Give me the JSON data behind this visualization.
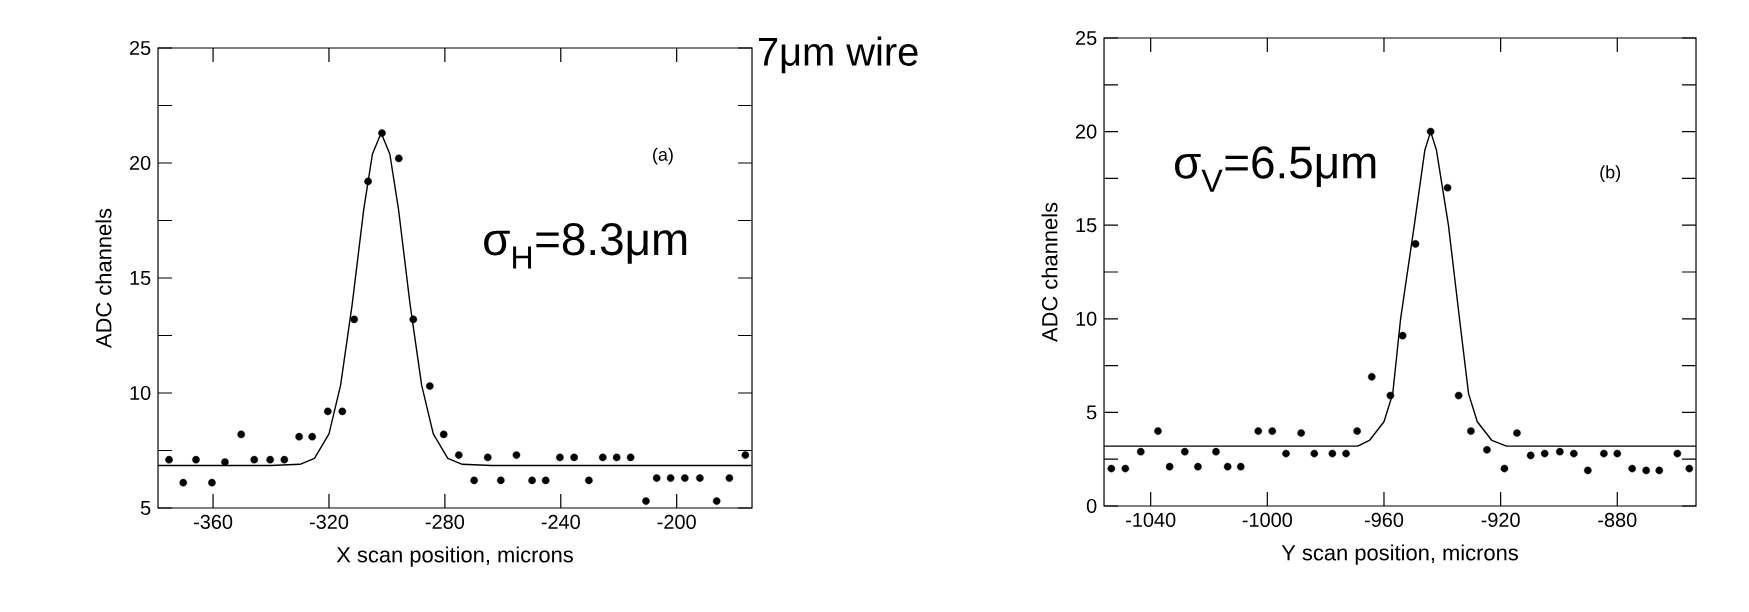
{
  "chart_data": [
    {
      "type": "scatter",
      "xlabel": "X scan position, microns",
      "ylabel": "ADC channels",
      "xlim": [
        -379,
        -174
      ],
      "ylim": [
        5,
        25
      ],
      "xticks": [
        -360,
        -320,
        -280,
        -240,
        -200
      ],
      "yticks": [
        5,
        {
          "value": 7.5,
          "label": null
        },
        10,
        {
          "value": 12.5,
          "label": null
        },
        15,
        {
          "value": 17.5,
          "label": null
        },
        20,
        {
          "value": 22.5,
          "label": null
        },
        25
      ],
      "annotations": [
        "(a)",
        "σ$_{H}$=8.3μm",
        "7μm wire"
      ],
      "series": [
        {
          "marker": "circle",
          "color": "#000000",
          "x": [
            -375.2,
            -370.3,
            -365.9,
            -360.4,
            -355.9,
            -350.3,
            -345.8,
            -340.3,
            -335.4,
            -330.3,
            -325.8,
            -320.4,
            -315.4,
            -311.3,
            -306.5,
            -301.7,
            -295.9,
            -290.9,
            -285.2,
            -280.4,
            -275.2,
            -269.9,
            -265.2,
            -260.7,
            -255.3,
            -249.9,
            -245.2,
            -240.3,
            -235.4,
            -230.3,
            -225.5,
            -220.7,
            -215.9,
            -210.6,
            -206.9,
            -202.1,
            -197.2,
            -192.0,
            -186.2,
            -181.8,
            -176.3
          ],
          "values": [
            7.1,
            6.1,
            7.1,
            6.1,
            7.0,
            8.2,
            7.1,
            7.1,
            7.1,
            8.1,
            8.1,
            9.2,
            9.2,
            13.2,
            19.2,
            21.3,
            20.2,
            13.2,
            10.3,
            8.2,
            7.3,
            6.2,
            7.2,
            6.2,
            7.3,
            6.2,
            6.2,
            7.2,
            7.2,
            6.2,
            7.2,
            7.2,
            7.2,
            5.3,
            6.3,
            6.3,
            6.3,
            6.3,
            5.3,
            6.3,
            7.3
          ]
        },
        {
          "type": "line",
          "color": "#000000",
          "line_style": "solid",
          "x": [
            -379,
            -340,
            -330,
            -325,
            -320,
            -316,
            -312,
            -308,
            -305,
            -302,
            -299,
            -296,
            -292,
            -288,
            -284,
            -279,
            -274,
            -264,
            -174
          ],
          "values": [
            6.85,
            6.85,
            6.9,
            7.16,
            8.22,
            10.33,
            13.84,
            17.98,
            20.39,
            21.3,
            20.39,
            17.98,
            13.84,
            10.33,
            8.22,
            7.16,
            6.9,
            6.85,
            6.85
          ]
        }
      ]
    },
    {
      "type": "scatter",
      "xlabel": "Y scan position, microns",
      "ylabel": "ADC channels",
      "xlim": [
        -1056,
        -853
      ],
      "ylim": [
        0,
        25
      ],
      "xticks": [
        -1040,
        -1000,
        -960,
        -920,
        -880
      ],
      "yticks": [
        0,
        {
          "value": 2.5,
          "label": null
        },
        5,
        {
          "value": 7.5,
          "label": null
        },
        10,
        {
          "value": 12.5,
          "label": null
        },
        15,
        {
          "value": 17.5,
          "label": null
        },
        20,
        {
          "value": 22.5,
          "label": null
        },
        25
      ],
      "annotations": [
        "(b)",
        "σ$_{V}$=6.5μm"
      ],
      "series": [
        {
          "marker": "circle",
          "color": "#000000",
          "x": [
            -1053.5,
            -1048.7,
            -1043.4,
            -1037.5,
            -1033.5,
            -1028.3,
            -1023.8,
            -1017.6,
            -1013.6,
            -1009.1,
            -1003.1,
            -998.3,
            -993.6,
            -988.4,
            -983.9,
            -977.7,
            -973.0,
            -969.2,
            -964.2,
            -957.8,
            -953.6,
            -949.2,
            -944.0,
            -938.2,
            -934.4,
            -930.2,
            -924.7,
            -918.7,
            -914.4,
            -909.7,
            -904.9,
            -899.7,
            -894.9,
            -890.1,
            -884.6,
            -880.0,
            -874.9,
            -870.1,
            -865.6,
            -859.4,
            -855.3
          ],
          "values": [
            2.0,
            2.0,
            2.9,
            4.0,
            2.1,
            2.9,
            2.1,
            2.9,
            2.1,
            2.1,
            4.0,
            4.0,
            2.8,
            3.9,
            2.8,
            2.8,
            2.8,
            4.0,
            6.9,
            5.9,
            9.1,
            14.0,
            20.0,
            17.0,
            5.9,
            4.0,
            3.0,
            2.0,
            3.9,
            2.7,
            2.8,
            2.9,
            2.8,
            1.9,
            2.8,
            2.8,
            2.0,
            1.9,
            1.9,
            2.8,
            2.0
          ]
        },
        {
          "type": "line",
          "color": "#000000",
          "line_style": "solid",
          "x": [
            -1056,
            -969,
            -965,
            -960,
            -957,
            -954.3,
            -949.6,
            -946,
            -944,
            -942,
            -937.9,
            -934.1,
            -931,
            -928,
            -923,
            -918,
            -853
          ],
          "values": [
            3.2,
            3.2,
            3.5,
            4.5,
            6.0,
            10,
            15,
            19,
            20,
            19,
            15,
            10,
            6.0,
            4.5,
            3.5,
            3.2,
            3.2
          ]
        }
      ]
    }
  ]
}
